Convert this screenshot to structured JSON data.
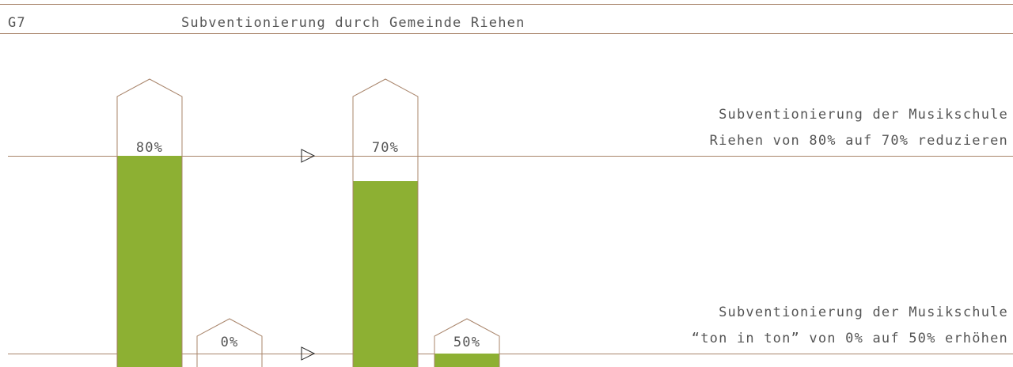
{
  "header": {
    "code": "G7",
    "title": "Subventionierung durch Gemeinde Riehen"
  },
  "chart_data": {
    "type": "house-bar",
    "color": "#8db033",
    "groups": [
      {
        "caption": [
          "Subventionierung der Musikschule",
          "Riehen von 80% auf 70% reduzieren"
        ],
        "values": [
          80,
          70
        ],
        "value_labels": [
          "80%",
          "70%"
        ]
      },
      {
        "caption": [
          "Subventionierung der Musikschule",
          "“ton in ton” von 0% auf 50% erhöhen"
        ],
        "values": [
          0,
          50
        ],
        "value_labels": [
          "0%",
          "50%"
        ]
      }
    ]
  }
}
